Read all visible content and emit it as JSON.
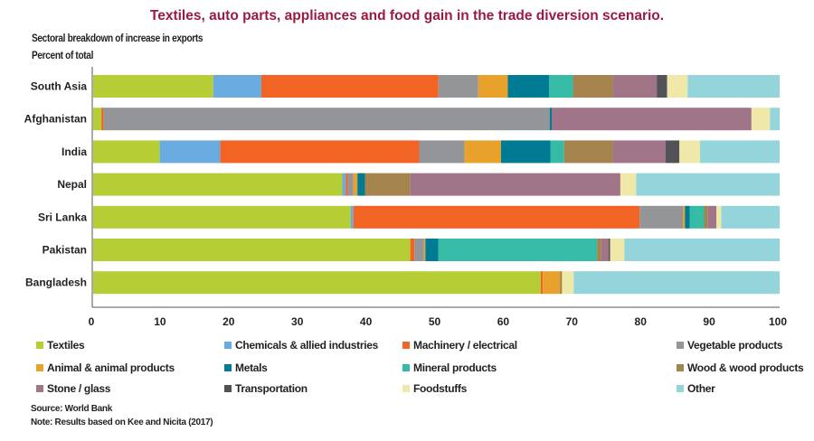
{
  "chart_data": {
    "type": "bar",
    "orientation": "horizontal",
    "stacked": true,
    "title": "Textiles, auto parts, appliances and food gain in the trade diversion scenario.",
    "subtitle": "Sectoral breakdown of increase in exports",
    "ylabel": "Percent of total",
    "xlabel": "",
    "xlim": [
      0,
      100
    ],
    "xticks": [
      "0",
      "10",
      "20",
      "30",
      "40",
      "50",
      "60",
      "70",
      "80",
      "90",
      "100"
    ],
    "grid": false,
    "legend_position": "bottom",
    "categories": [
      "South Asia",
      "Afghanistan",
      "India",
      "Nepal",
      "Sri Lanka",
      "Pakistan",
      "Bangladesh"
    ],
    "series": [
      {
        "name": "Textiles",
        "color": "#b7cd35",
        "values": [
          17.5,
          1.2,
          9.7,
          36.3,
          37.5,
          46.2,
          65.2
        ]
      },
      {
        "name": "Chemicals & allied industries",
        "color": "#6aacdf",
        "values": [
          7.0,
          0.0,
          8.8,
          0.5,
          0.4,
          0.0,
          0.0
        ]
      },
      {
        "name": "Machinery / electrical",
        "color": "#f26424",
        "values": [
          25.8,
          0.3,
          29.0,
          0.3,
          41.7,
          0.6,
          0.3
        ]
      },
      {
        "name": "Vegetable products",
        "color": "#939598",
        "values": [
          5.8,
          65.0,
          6.6,
          0.8,
          6.3,
          1.4,
          0.0
        ]
      },
      {
        "name": "Animal & animal products",
        "color": "#e8a22b",
        "values": [
          4.3,
          0.0,
          5.3,
          0.6,
          0.3,
          0.2,
          2.5
        ]
      },
      {
        "name": "Metals",
        "color": "#017a94",
        "values": [
          6.0,
          0.3,
          7.2,
          1.1,
          0.7,
          1.9,
          0.0
        ]
      },
      {
        "name": "Mineral products",
        "color": "#35bba6",
        "values": [
          3.5,
          0.0,
          2.0,
          0.0,
          2.1,
          23.1,
          0.0
        ]
      },
      {
        "name": "Wood & wood products",
        "color": "#a4834d",
        "values": [
          5.8,
          0.0,
          7.1,
          6.6,
          0.5,
          0.6,
          0.3
        ]
      },
      {
        "name": "Stone / glass",
        "color": "#a07588",
        "values": [
          6.4,
          29.1,
          7.7,
          30.6,
          1.3,
          1.1,
          0.0
        ]
      },
      {
        "name": "Transportation",
        "color": "#525259",
        "values": [
          1.5,
          0.0,
          2.0,
          0.0,
          0.0,
          0.2,
          0.0
        ]
      },
      {
        "name": "Foodstuffs",
        "color": "#efe8a8",
        "values": [
          3.0,
          2.7,
          3.0,
          2.3,
          0.7,
          2.1,
          1.7
        ]
      },
      {
        "name": "Other",
        "color": "#93d5da",
        "values": [
          13.4,
          1.4,
          11.6,
          20.9,
          8.5,
          22.6,
          30.0
        ]
      }
    ]
  },
  "header": {
    "title": "Textiles, auto parts, appliances and food gain in the trade diversion scenario.",
    "subtitle": "Sectoral breakdown of increase in exports",
    "unit_label": "Percent of total"
  },
  "footer": {
    "source": "Source: World Bank",
    "note": "Note: Results based on Kee and Nicita (2017)"
  }
}
